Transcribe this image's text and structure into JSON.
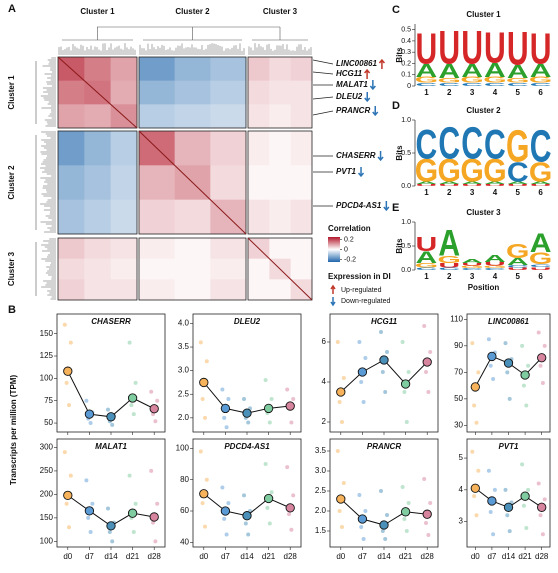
{
  "y_label": "Transcripts per million (TPM)",
  "panel_b": "B",
  "chart_data": [
    {
      "type": "heatmap",
      "panel": "A",
      "clusters": [
        "Cluster 1",
        "Cluster 2",
        "Cluster 3"
      ],
      "matrix": [
        [
          0.18,
          0.14,
          0.1,
          -0.16,
          -0.12,
          -0.1,
          0.06,
          0.04,
          0.05
        ],
        [
          0.14,
          0.15,
          0.09,
          -0.12,
          -0.1,
          -0.08,
          0.04,
          0.03,
          0.03
        ],
        [
          0.1,
          0.09,
          0.12,
          -0.08,
          -0.07,
          -0.06,
          0.03,
          0.02,
          0.03
        ],
        [
          -0.16,
          -0.12,
          -0.08,
          0.16,
          0.08,
          0.05,
          0.02,
          0.01,
          0.02
        ],
        [
          -0.12,
          -0.1,
          -0.07,
          0.08,
          0.1,
          0.04,
          0.01,
          0.01,
          0.01
        ],
        [
          -0.1,
          -0.08,
          -0.06,
          0.05,
          0.04,
          0.08,
          0.03,
          0.02,
          0.03
        ],
        [
          0.06,
          0.04,
          0.03,
          0.02,
          0.01,
          0.03,
          0.05,
          0.01,
          0.01
        ],
        [
          0.04,
          0.03,
          0.02,
          0.01,
          0.01,
          0.02,
          0.01,
          0.04,
          0.01
        ],
        [
          0.05,
          0.03,
          0.03,
          0.02,
          0.01,
          0.03,
          0.01,
          0.01,
          0.04
        ]
      ],
      "clim": [
        -0.25,
        0.25
      ],
      "colorbar_title": "Correlation",
      "colorbar_ticks": [
        0.2,
        0,
        -0.2
      ],
      "genes": [
        {
          "name": "LINC00861",
          "direction": "up"
        },
        {
          "name": "HCG11",
          "direction": "up"
        },
        {
          "name": "MALAT1",
          "direction": "down"
        },
        {
          "name": "DLEU2",
          "direction": "down"
        },
        {
          "name": "PRANCR",
          "direction": "down"
        },
        {
          "name": "CHASERR",
          "direction": "down"
        },
        {
          "name": "PVT1",
          "direction": "down"
        },
        {
          "name": "PDCD4-AS1",
          "direction": "down"
        }
      ],
      "legend_title": "Expression in DI",
      "legend": [
        "Up-regulated",
        "Down-regulated"
      ],
      "up_color": "#c0392b",
      "down_color": "#2e75b6"
    },
    {
      "type": "logo",
      "panel": "C",
      "title": "Cluster 1",
      "ylabel": "Bits",
      "categories": [
        1,
        2,
        3,
        4,
        5,
        6
      ],
      "ylim": [
        0,
        0.55
      ],
      "yticks": [
        0,
        0.1,
        0.2,
        0.3,
        0.4,
        0.5
      ],
      "series": [
        {
          "name": "U",
          "color": "#d62728",
          "values": [
            0.28,
            0.3,
            0.3,
            0.28,
            0.3,
            0.28
          ]
        },
        {
          "name": "A",
          "color": "#2ca02c",
          "values": [
            0.12,
            0.13,
            0.12,
            0.13,
            0.12,
            0.12
          ]
        },
        {
          "name": "G",
          "color": "#f5a623",
          "values": [
            0.05,
            0.04,
            0.05,
            0.05,
            0.04,
            0.05
          ]
        },
        {
          "name": "C",
          "color": "#1f77b4",
          "values": [
            0.03,
            0.03,
            0.03,
            0.03,
            0.03,
            0.03
          ]
        }
      ]
    },
    {
      "type": "logo",
      "panel": "D",
      "title": "Cluster 2",
      "ylabel": "Bits",
      "categories": [
        1,
        2,
        3,
        4,
        5,
        6
      ],
      "ylim": [
        0,
        1.0
      ],
      "yticks": [
        {
          "value": 0,
          "label": "0.0"
        },
        0.5,
        {
          "value": 1,
          "label": "1.0"
        }
      ],
      "series": [
        {
          "name": "C",
          "color": "#1f77b4",
          "values": [
            0.45,
            0.5,
            0.5,
            0.45,
            0.3,
            0.5
          ]
        },
        {
          "name": "G",
          "color": "#f5a623",
          "values": [
            0.35,
            0.35,
            0.35,
            0.35,
            0.5,
            0.3
          ]
        },
        {
          "name": "A",
          "color": "#2ca02c",
          "values": [
            0.04,
            0.04,
            0.04,
            0.04,
            0.04,
            0.04
          ]
        },
        {
          "name": "U",
          "color": "#d62728",
          "values": [
            0.03,
            0.03,
            0.03,
            0.03,
            0.03,
            0.03
          ]
        }
      ]
    },
    {
      "type": "logo",
      "panel": "E",
      "title": "Cluster 3",
      "ylabel": "Bits",
      "xlabel": "Position",
      "categories": [
        1,
        2,
        3,
        4,
        5,
        6
      ],
      "ylim": [
        0,
        1.0
      ],
      "yticks": [
        {
          "value": 0,
          "label": "0.0"
        },
        0.5,
        {
          "value": 1,
          "label": "1.0"
        }
      ],
      "series": [
        {
          "name": "A",
          "color": "#2ca02c",
          "values": [
            0.25,
            0.55,
            0.08,
            0.15,
            0.15,
            0.4
          ]
        },
        {
          "name": "U",
          "color": "#d62728",
          "values": [
            0.3,
            0.1,
            0.06,
            0.08,
            0.05,
            0.06
          ]
        },
        {
          "name": "G",
          "color": "#f5a623",
          "values": [
            0.1,
            0.15,
            0.05,
            0.05,
            0.3,
            0.25
          ]
        },
        {
          "name": "C",
          "color": "#1f77b4",
          "values": [
            0.05,
            0.05,
            0.04,
            0.04,
            0.05,
            0.06
          ]
        }
      ]
    },
    {
      "type": "line",
      "title": "CHASERR",
      "ylim": [
        40,
        172
      ],
      "yticks": [
        50,
        75,
        100,
        125,
        150
      ],
      "colors": [
        "#f7b35b",
        "#5b9bd5",
        "#4a90b8",
        "#7fcca0",
        "#d7849f"
      ],
      "values": [
        108,
        60,
        57,
        78,
        66
      ],
      "points": [
        [
          160,
          140,
          95,
          70
        ],
        [
          75,
          62,
          55,
          50
        ],
        [
          65,
          58,
          52,
          48
        ],
        [
          140,
          95,
          70,
          60
        ],
        [
          85,
          75,
          60,
          52
        ]
      ]
    },
    {
      "type": "line",
      "title": "DLEU2",
      "ylim": [
        1.7,
        4.2
      ],
      "yticks": [
        {
          "value": 2,
          "label": "2.0"
        },
        2.5,
        {
          "value": 3,
          "label": "3.0"
        },
        3.5,
        {
          "value": 4,
          "label": "4.0"
        }
      ],
      "colors": [
        "#f7b35b",
        "#5b9bd5",
        "#4a90b8",
        "#7fcca0",
        "#d7849f"
      ],
      "values": [
        2.75,
        2.2,
        2.1,
        2.2,
        2.25
      ],
      "points": [
        [
          3.6,
          3.2,
          2.4,
          2.0
        ],
        [
          2.6,
          2.4,
          2.0,
          1.8
        ],
        [
          2.4,
          2.2,
          2.0,
          1.9
        ],
        [
          2.8,
          2.4,
          2.1,
          1.9
        ],
        [
          2.6,
          2.4,
          2.2,
          1.9
        ]
      ]
    },
    {
      "type": "line",
      "title": "HCG11",
      "ylim": [
        1.5,
        7.4
      ],
      "yticks": [
        2,
        4,
        6
      ],
      "colors": [
        "#f7b35b",
        "#5b9bd5",
        "#4a90b8",
        "#7fcca0",
        "#d7849f"
      ],
      "values": [
        3.5,
        4.5,
        5.1,
        3.9,
        5.0
      ],
      "points": [
        [
          6.0,
          4.2,
          3.0,
          2.0
        ],
        [
          6.0,
          5.2,
          4.0,
          3.0
        ],
        [
          6.5,
          5.5,
          4.5,
          3.5
        ],
        [
          6.0,
          4.5,
          3.5,
          2.0
        ],
        [
          6.8,
          5.5,
          4.5,
          3.5
        ]
      ]
    },
    {
      "type": "line",
      "title": "LINC00861",
      "ylim": [
        25,
        114
      ],
      "yticks": [
        30,
        50,
        70,
        90,
        110
      ],
      "colors": [
        "#f7b35b",
        "#5b9bd5",
        "#4a90b8",
        "#7fcca0",
        "#d7849f"
      ],
      "values": [
        59,
        82,
        77,
        68,
        81
      ],
      "points": [
        [
          92,
          70,
          45,
          32
        ],
        [
          95,
          85,
          75,
          65
        ],
        [
          92,
          80,
          70,
          50
        ],
        [
          90,
          75,
          60,
          45
        ],
        [
          100,
          90,
          75,
          62
        ]
      ]
    },
    {
      "type": "line",
      "title": "MALAT1",
      "ylim": [
        88,
        318
      ],
      "yticks": [
        100,
        150,
        200,
        250,
        300
      ],
      "categories": [
        "d0",
        "d7",
        "d14",
        "d21",
        "d28"
      ],
      "colors": [
        "#f7b35b",
        "#5b9bd5",
        "#4a90b8",
        "#7fcca0",
        "#d7849f"
      ],
      "values": [
        198,
        165,
        133,
        160,
        152
      ],
      "points": [
        [
          290,
          240,
          180,
          130
        ],
        [
          230,
          180,
          150,
          120
        ],
        [
          170,
          140,
          120,
          100
        ],
        [
          240,
          180,
          150,
          120
        ],
        [
          250,
          180,
          140,
          100
        ]
      ]
    },
    {
      "type": "line",
      "title": "PDCD4-AS1",
      "ylim": [
        37,
        106
      ],
      "yticks": [
        40,
        60,
        80,
        100
      ],
      "categories": [
        "d0",
        "d7",
        "d14",
        "d21",
        "d28"
      ],
      "colors": [
        "#f7b35b",
        "#5b9bd5",
        "#4a90b8",
        "#7fcca0",
        "#d7849f"
      ],
      "values": [
        71,
        60,
        57,
        68,
        62
      ],
      "points": [
        [
          98,
          80,
          65,
          50
        ],
        [
          75,
          65,
          55,
          45
        ],
        [
          70,
          60,
          52,
          45
        ],
        [
          90,
          72,
          62,
          52
        ],
        [
          88,
          70,
          58,
          48
        ]
      ]
    },
    {
      "type": "line",
      "title": "PRANCR",
      "ylim": [
        1.1,
        3.8
      ],
      "yticks": [
        1.5,
        {
          "value": 2,
          "label": "2.0"
        },
        2.5,
        {
          "value": 3,
          "label": "3.0"
        },
        3.5
      ],
      "categories": [
        "d0",
        "d7",
        "d14",
        "d21",
        "d28"
      ],
      "colors": [
        "#f7b35b",
        "#5b9bd5",
        "#4a90b8",
        "#7fcca0",
        "#d7849f"
      ],
      "values": [
        2.3,
        1.8,
        1.65,
        1.98,
        1.92
      ],
      "points": [
        [
          3.5,
          2.7,
          2.0,
          1.6
        ],
        [
          2.4,
          2.0,
          1.6,
          1.3
        ],
        [
          2.5,
          1.9,
          1.5,
          1.3
        ],
        [
          2.6,
          2.2,
          1.8,
          1.5
        ],
        [
          2.8,
          2.2,
          1.7,
          1.4
        ]
      ]
    },
    {
      "type": "line",
      "title": "PVT1",
      "ylim": [
        2.2,
        5.6
      ],
      "yticks": [
        3,
        4,
        5
      ],
      "categories": [
        "d0",
        "d7",
        "d14",
        "d21",
        "d28"
      ],
      "colors": [
        "#f7b35b",
        "#5b9bd5",
        "#4a90b8",
        "#7fcca0",
        "#d7849f"
      ],
      "values": [
        4.05,
        3.65,
        3.45,
        3.8,
        3.45
      ],
      "points": [
        [
          5.2,
          4.6,
          3.8,
          3.2
        ],
        [
          4.6,
          4.0,
          3.3,
          2.6
        ],
        [
          4.0,
          3.6,
          3.2,
          2.7
        ],
        [
          4.8,
          4.0,
          3.5,
          2.8
        ],
        [
          4.2,
          3.7,
          3.2,
          2.6
        ]
      ]
    }
  ]
}
